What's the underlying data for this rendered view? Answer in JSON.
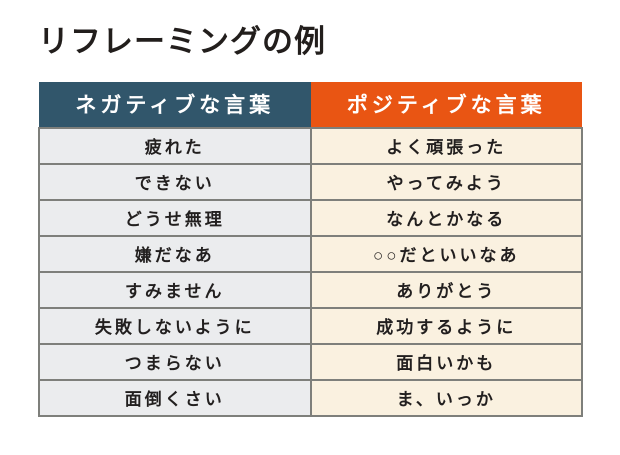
{
  "title": "リフレーミングの例",
  "table": {
    "headers": {
      "negative": "ネガティブな言葉",
      "positive": "ポジティブな言葉"
    },
    "rows": [
      {
        "negative": "疲れた",
        "positive": "よく頑張った"
      },
      {
        "negative": "できない",
        "positive": "やってみよう"
      },
      {
        "negative": "どうせ無理",
        "positive": "なんとかなる"
      },
      {
        "negative": "嫌だなあ",
        "positive": "○○だといいなあ"
      },
      {
        "negative": "すみません",
        "positive": "ありがとう"
      },
      {
        "negative": "失敗しないように",
        "positive": "成功するように"
      },
      {
        "negative": "つまらない",
        "positive": "面白いかも"
      },
      {
        "negative": "面倒くさい",
        "positive": "ま、いっか"
      }
    ],
    "colors": {
      "negative_header_bg": "#31566B",
      "positive_header_bg": "#E95513",
      "negative_cell_bg": "#EBECEE",
      "positive_cell_bg": "#FAF1E0",
      "border": "#7E7F7B",
      "header_text": "#FFFFFF",
      "cell_text": "#221F1F",
      "title_text": "#221E1C"
    }
  }
}
